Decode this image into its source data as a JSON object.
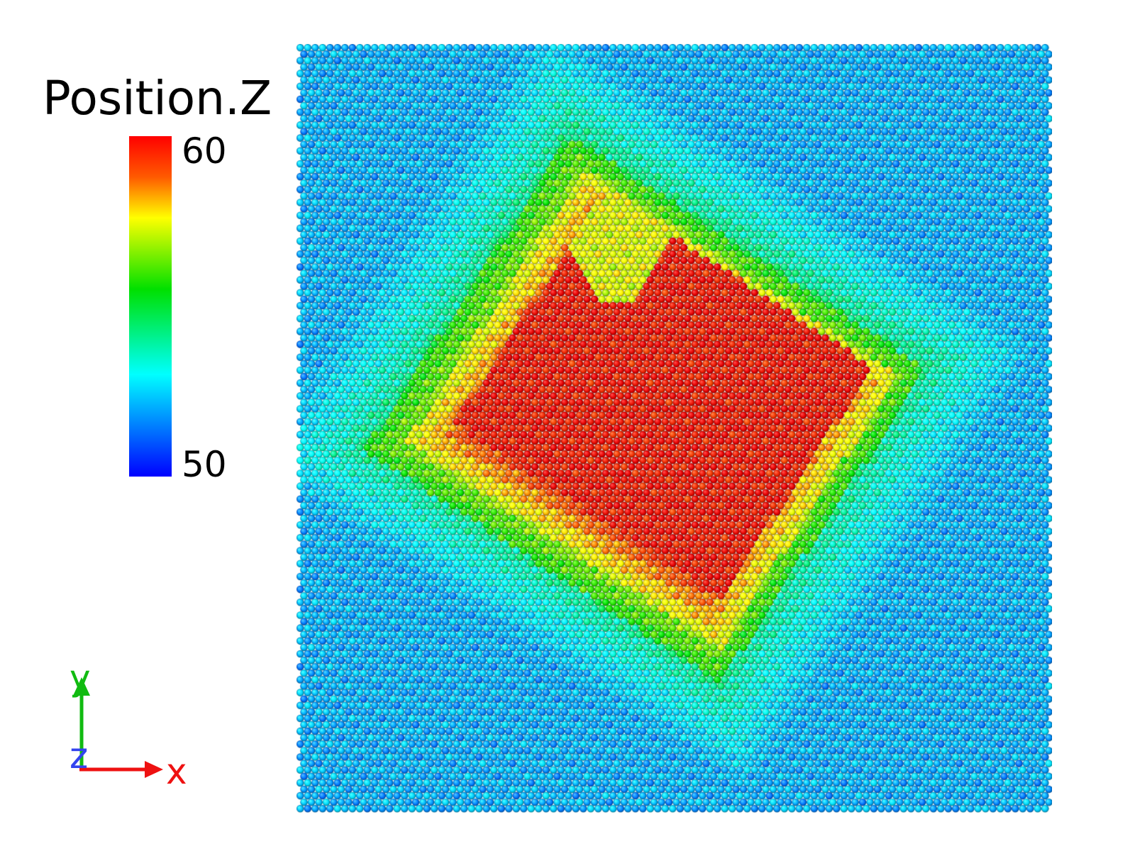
{
  "legend": {
    "title": "Position.Z",
    "max_label": "60",
    "min_label": "50",
    "max_value": 60,
    "min_value": 50,
    "colormap": "rainbow",
    "colors": [
      "#ff0000",
      "#ff8000",
      "#ffff00",
      "#00ff00",
      "#00ffff",
      "#0080ff",
      "#0000ff"
    ]
  },
  "axis_triad": {
    "x_label": "x",
    "y_label": "y",
    "z_label": "z",
    "x_color": "#ee1111",
    "y_color": "#11bb11",
    "z_color": "#3344ee"
  },
  "particle_view": {
    "background_z": 52,
    "core_z": 59.8,
    "lattice": "hexagonal"
  }
}
